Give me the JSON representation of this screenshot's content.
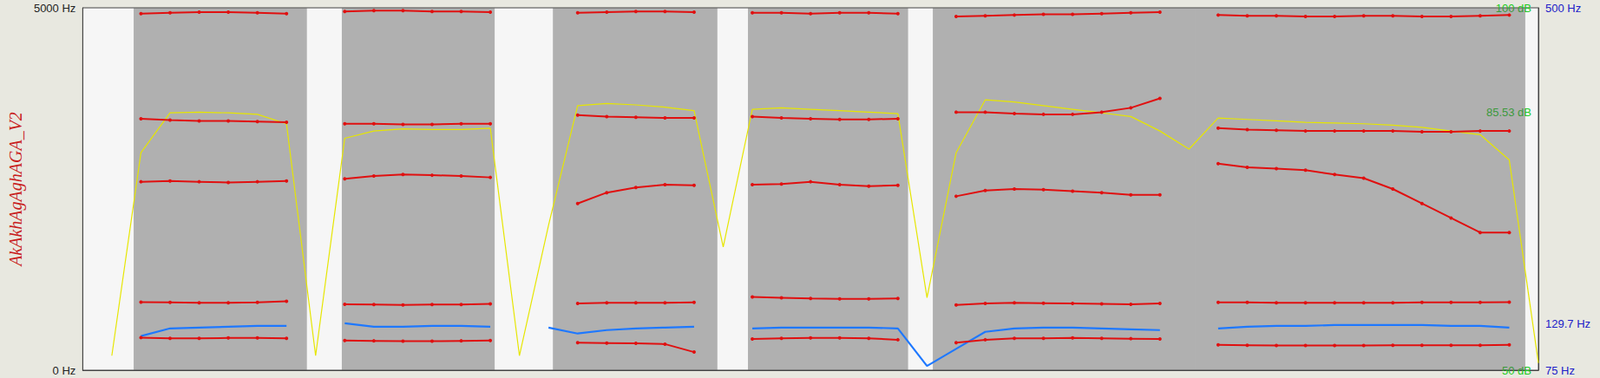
{
  "chart_data": {
    "type": "line",
    "title": "AkAkhAgAghAGA_V2",
    "tick_labels": "y",
    "xlim": [
      0,
      100
    ],
    "ylim": [
      0,
      5000
    ],
    "yticks": [
      {
        "value": 0,
        "label": "0 Hz"
      },
      {
        "value": 5000,
        "label": "5000 Hz"
      }
    ],
    "y2lim": [
      75,
      500
    ],
    "y2ticks": [
      {
        "value": 75,
        "label": "75 Hz"
      },
      {
        "value": 129.7,
        "label": "129.7 Hz"
      },
      {
        "value": 500,
        "label": "500 Hz"
      }
    ],
    "y3lim": [
      50,
      100
    ],
    "y3ticks": [
      {
        "value": 50,
        "label": "50 dB"
      },
      {
        "value": 85.53,
        "label": "85.53 dB"
      },
      {
        "value": 100,
        "label": "100 dB"
      }
    ],
    "segments": [
      [
        3.5,
        15.4
      ],
      [
        17.8,
        28.3
      ],
      [
        32.3,
        43.6
      ],
      [
        45.7,
        56.7
      ],
      [
        58.4,
        76.4
      ],
      [
        76.4,
        99.1
      ]
    ],
    "x": [
      0,
      2,
      4,
      6,
      8,
      10,
      12,
      14,
      16,
      18,
      20,
      22,
      24,
      26,
      28,
      30,
      32,
      34,
      36,
      38,
      40,
      42,
      44,
      46,
      48,
      50,
      52,
      54,
      56,
      58,
      60,
      62,
      64,
      66,
      68,
      70,
      72,
      74,
      76,
      78,
      80,
      82,
      84,
      86,
      88,
      90,
      92,
      94,
      96,
      98,
      100
    ],
    "series": [
      {
        "color": "#e01010",
        "marker": "circle",
        "line_style": "solid",
        "values": [
          null,
          null,
          450,
          440,
          440,
          445,
          445,
          440,
          null,
          410,
          405,
          400,
          400,
          405,
          410,
          null,
          null,
          380,
          375,
          370,
          360,
          250,
          null,
          430,
          440,
          445,
          445,
          440,
          420,
          null,
          380,
          420,
          440,
          440,
          445,
          440,
          435,
          430,
          null,
          350,
          345,
          340,
          340,
          340,
          340,
          345,
          345,
          345,
          345,
          350,
          null
        ]
      },
      {
        "color": "#e01010",
        "marker": "circle",
        "line_style": "solid",
        "values": [
          null,
          null,
          940,
          935,
          930,
          930,
          935,
          950,
          null,
          910,
          905,
          900,
          905,
          905,
          915,
          null,
          null,
          920,
          930,
          930,
          930,
          935,
          null,
          1010,
          1000,
          990,
          985,
          985,
          990,
          null,
          900,
          920,
          930,
          925,
          920,
          915,
          910,
          920,
          null,
          935,
          935,
          930,
          930,
          930,
          930,
          930,
          935,
          935,
          935,
          940,
          null
        ]
      },
      {
        "color": "#e01010",
        "marker": "circle",
        "line_style": "solid",
        "values": [
          null,
          null,
          2600,
          2610,
          2600,
          2590,
          2600,
          2610,
          null,
          2640,
          2680,
          2700,
          2690,
          2680,
          2660,
          null,
          null,
          2300,
          2450,
          2520,
          2560,
          2550,
          null,
          2560,
          2570,
          2600,
          2560,
          2540,
          2550,
          null,
          2400,
          2480,
          2500,
          2490,
          2470,
          2450,
          2420,
          2420,
          null,
          2850,
          2800,
          2780,
          2760,
          2700,
          2650,
          2500,
          2300,
          2100,
          1900,
          1900,
          null
        ]
      },
      {
        "color": "#e01010",
        "marker": "circle",
        "line_style": "solid",
        "values": [
          null,
          null,
          3470,
          3450,
          3440,
          3440,
          3430,
          3420,
          null,
          3400,
          3400,
          3390,
          3390,
          3400,
          3400,
          null,
          null,
          3520,
          3500,
          3490,
          3480,
          3480,
          null,
          3500,
          3480,
          3470,
          3460,
          3460,
          3470,
          null,
          3560,
          3560,
          3540,
          3530,
          3530,
          3560,
          3620,
          3750,
          null,
          3340,
          3320,
          3310,
          3300,
          3300,
          3300,
          3300,
          3290,
          3290,
          3300,
          3300,
          null
        ]
      },
      {
        "color": "#e01010",
        "marker": "circle",
        "line_style": "solid",
        "values": [
          null,
          null,
          4920,
          4930,
          4940,
          4940,
          4930,
          4920,
          null,
          4950,
          4960,
          4960,
          4950,
          4950,
          4940,
          null,
          null,
          4930,
          4940,
          4950,
          4950,
          4940,
          null,
          4930,
          4930,
          4920,
          4930,
          4930,
          4920,
          null,
          4880,
          4890,
          4900,
          4910,
          4910,
          4920,
          4930,
          4940,
          null,
          4900,
          4890,
          4890,
          4880,
          4880,
          4890,
          4890,
          4880,
          4880,
          4890,
          4900,
          null
        ]
      },
      {
        "color": "#1e78ff",
        "marker": "none",
        "line_style": "solid",
        "axis": "y2",
        "values": [
          null,
          null,
          115,
          124,
          125,
          126,
          127,
          127,
          null,
          130,
          126,
          126,
          127,
          127,
          126,
          null,
          125,
          118,
          122,
          124,
          125,
          126,
          null,
          124,
          125,
          125,
          125,
          125,
          124,
          80,
          100,
          120,
          124,
          125,
          125,
          124,
          123,
          122,
          null,
          124,
          126,
          127,
          127,
          128,
          128,
          128,
          128,
          127,
          127,
          125,
          null
        ]
      },
      {
        "color": "#e6e600",
        "marker": "none",
        "line_style": "solid",
        "axis": "y3",
        "values": [
          null,
          52,
          80,
          85.5,
          85.6,
          85.5,
          85.3,
          84,
          52,
          82,
          83,
          83.3,
          83.2,
          83.2,
          83.4,
          52,
          70,
          86.5,
          86.8,
          86.6,
          86.3,
          85.8,
          67,
          86,
          86.2,
          86,
          85.8,
          85.6,
          85.4,
          60,
          80,
          87.3,
          87,
          86.5,
          86,
          85.5,
          85,
          83,
          80.5,
          84.8,
          84.6,
          84.4,
          84.2,
          84.1,
          84,
          83.8,
          83.5,
          83,
          82.5,
          79,
          51
        ]
      }
    ]
  }
}
